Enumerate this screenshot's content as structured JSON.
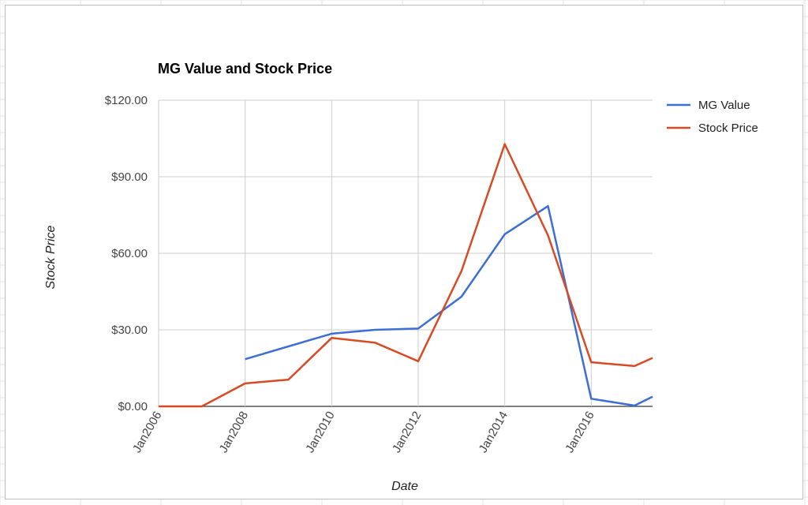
{
  "chart_data": {
    "type": "line",
    "title": "MG Value and Stock Price",
    "xlabel": "Date",
    "ylabel": "Stock Price",
    "ylim": [
      0,
      120
    ],
    "xlim": [
      "Jan2006",
      "Jun2017"
    ],
    "y_ticks": [
      "$0.00",
      "$30.00",
      "$60.00",
      "$90.00",
      "$120.00"
    ],
    "y_tick_values": [
      0,
      30,
      60,
      90,
      120
    ],
    "x_ticks": [
      "Jan2006",
      "Jan2008",
      "Jan2010",
      "Jan2012",
      "Jan2014",
      "Jan2016"
    ],
    "x_tick_years": [
      2006,
      2008,
      2010,
      2012,
      2014,
      2016
    ],
    "grid": true,
    "legend_position": "right",
    "series": [
      {
        "name": "MG Value",
        "color": "#3c6fd6",
        "points": [
          {
            "x": "Jan2008",
            "y": 18.5
          },
          {
            "x": "Jan2009",
            "y": 23.5
          },
          {
            "x": "Jan2010",
            "y": 28.5
          },
          {
            "x": "Jan2011",
            "y": 30.0
          },
          {
            "x": "Jan2012",
            "y": 30.5
          },
          {
            "x": "Jan2013",
            "y": 43.0
          },
          {
            "x": "Jan2014",
            "y": 67.5
          },
          {
            "x": "Jan2015",
            "y": 78.5
          },
          {
            "x": "Jan2016",
            "y": 3.0
          },
          {
            "x": "Jan2017",
            "y": 0.3
          },
          {
            "x": "Jun2017",
            "y": 3.8
          }
        ]
      },
      {
        "name": "Stock Price",
        "color": "#d84a24",
        "points": [
          {
            "x": "Jan2006",
            "y": 0
          },
          {
            "x": "Jan2007",
            "y": 0
          },
          {
            "x": "Jan2008",
            "y": 9.0
          },
          {
            "x": "Jan2009",
            "y": 10.5
          },
          {
            "x": "Jan2010",
            "y": 26.8
          },
          {
            "x": "Jan2011",
            "y": 25.0
          },
          {
            "x": "Jan2012",
            "y": 17.7
          },
          {
            "x": "Jan2013",
            "y": 53.0
          },
          {
            "x": "Jan2014",
            "y": 102.8
          },
          {
            "x": "Jan2015",
            "y": 67.0
          },
          {
            "x": "Jan2016",
            "y": 17.3
          },
          {
            "x": "Jan2017",
            "y": 15.8
          },
          {
            "x": "Jun2017",
            "y": 19.0
          }
        ]
      }
    ]
  }
}
